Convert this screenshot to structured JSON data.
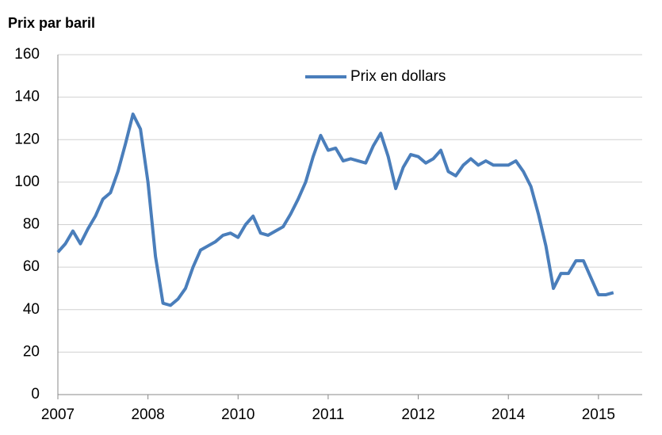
{
  "chart_data": {
    "type": "line",
    "title": "Prix par baril",
    "categories": [
      "2007",
      null,
      null,
      null,
      null,
      null,
      null,
      null,
      null,
      null,
      null,
      null,
      "2008",
      null,
      null,
      null,
      null,
      null,
      null,
      null,
      null,
      null,
      null,
      null,
      "2010",
      null,
      null,
      null,
      null,
      null,
      null,
      null,
      null,
      null,
      null,
      null,
      "2011",
      null,
      null,
      null,
      null,
      null,
      null,
      null,
      null,
      null,
      null,
      null,
      "2012",
      null,
      null,
      null,
      null,
      null,
      null,
      null,
      null,
      null,
      null,
      null,
      "2014",
      null,
      null,
      null,
      null,
      null,
      null,
      null,
      null,
      null,
      null,
      null,
      "2015",
      null,
      null
    ],
    "series": [
      {
        "name": "Prix en dollars",
        "color": "#4a7ebb",
        "values": [
          67,
          71,
          77,
          71,
          78,
          84,
          92,
          95,
          105,
          118,
          132,
          125,
          100,
          65,
          43,
          42,
          45,
          50,
          60,
          68,
          70,
          72,
          75,
          76,
          74,
          80,
          84,
          76,
          75,
          77,
          79,
          85,
          92,
          100,
          112,
          122,
          115,
          116,
          110,
          111,
          110,
          109,
          117,
          123,
          112,
          97,
          107,
          113,
          112,
          109,
          111,
          115,
          105,
          103,
          108,
          111,
          108,
          110,
          108,
          108,
          108,
          110,
          105,
          98,
          85,
          70,
          50,
          57,
          57,
          63,
          63,
          55,
          47,
          47,
          48
        ]
      }
    ],
    "ylim": [
      0,
      160
    ],
    "yticks": [
      0,
      20,
      40,
      60,
      80,
      100,
      120,
      140,
      160
    ],
    "grid": true,
    "legend": "upper center"
  }
}
